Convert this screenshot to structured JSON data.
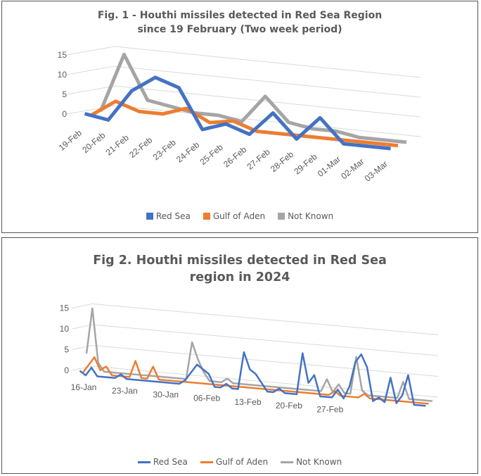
{
  "colors": {
    "red_sea": "#4472C4",
    "gulf_of_aden": "#ED7D31",
    "not_known": "#A5A5A5",
    "grid": "#D9D9D9"
  },
  "legend_labels": {
    "red_sea": "Red Sea",
    "gulf_of_aden": "Gulf of Aden",
    "not_known": "Not Known"
  },
  "chart_data": [
    {
      "type": "line",
      "title": "Fig. 1 - Houthi missiles detected in Red Sea Region since 19 February (Two week period)",
      "style": "3d-line",
      "categories": [
        "19-Feb",
        "20-Feb",
        "21-Feb",
        "22-Feb",
        "23-Feb",
        "24-Feb",
        "25-Feb",
        "26-Feb",
        "27-Feb",
        "28-Feb",
        "29-Feb",
        "01-Mar",
        "02-Mar",
        "03-Mar"
      ],
      "y_ticks": [
        "0",
        "5",
        "10",
        "15"
      ],
      "ylim": [
        0,
        15
      ],
      "series": [
        {
          "name": "Red Sea",
          "values": [
            1,
            0,
            8,
            12,
            10,
            0,
            2,
            0,
            6,
            0,
            6,
            0,
            0,
            0
          ]
        },
        {
          "name": "Gulf of Aden",
          "values": [
            0,
            4,
            2,
            2,
            4,
            1,
            2,
            0,
            0,
            0,
            0,
            0,
            0,
            0
          ]
        },
        {
          "name": "Not Known",
          "values": [
            0,
            15,
            4,
            3,
            2,
            2,
            1,
            8,
            2,
            1,
            1,
            0,
            0,
            0
          ]
        }
      ],
      "legend": "bottom",
      "grid": true
    },
    {
      "type": "line",
      "title": "Fig 2. Houthi missiles detected in Red Sea region in 2024",
      "style": "3d-line",
      "x_ticks": [
        "16-Jan",
        "23-Jan",
        "30-Jan",
        "06-Feb",
        "13-Feb",
        "20-Feb",
        "27-Feb"
      ],
      "y_ticks": [
        "0",
        "5",
        "10",
        "15"
      ],
      "ylim": [
        0,
        15
      ],
      "series": [
        {
          "name": "Red Sea",
          "values": [
            1,
            0,
            2,
            0,
            0,
            0,
            0,
            1,
            0,
            0,
            0,
            0,
            0,
            0,
            0,
            0,
            0,
            0,
            1,
            3,
            5,
            4,
            3,
            0,
            0,
            1,
            0,
            0,
            9,
            5,
            4,
            2,
            0,
            0,
            1,
            0,
            0,
            0,
            10,
            3,
            5,
            0,
            0,
            0,
            2,
            0,
            3,
            9,
            11,
            8,
            0,
            1,
            0,
            6,
            0,
            2,
            7,
            0,
            0,
            0
          ]
        },
        {
          "name": "Gulf of Aden",
          "values": [
            0,
            2,
            4,
            1,
            2,
            0,
            0,
            0,
            0,
            4,
            0,
            0,
            3,
            0,
            0,
            0,
            0,
            0,
            0,
            0,
            0,
            0,
            0,
            0,
            0,
            0,
            0,
            0,
            0,
            0,
            0,
            0,
            0,
            0,
            0,
            0,
            0,
            0,
            0,
            0,
            0,
            0,
            0,
            1,
            0,
            0,
            0,
            0,
            1,
            0,
            0,
            0,
            0,
            0,
            0,
            0,
            0,
            0,
            0,
            0
          ]
        },
        {
          "name": "Not Known",
          "values": [
            4,
            15,
            2,
            0,
            0,
            0,
            0,
            0,
            0,
            0,
            0,
            0,
            0,
            0,
            0,
            0,
            0,
            0,
            9,
            5,
            2,
            0,
            0,
            0,
            1,
            0,
            0,
            0,
            0,
            0,
            0,
            0,
            0,
            0,
            0,
            0,
            0,
            0,
            0,
            0,
            0,
            3,
            0,
            2,
            0,
            0,
            9,
            1,
            0,
            0,
            0,
            0,
            0,
            0,
            4,
            0,
            0,
            0,
            0,
            0
          ]
        }
      ],
      "legend": "bottom",
      "grid": true
    }
  ]
}
